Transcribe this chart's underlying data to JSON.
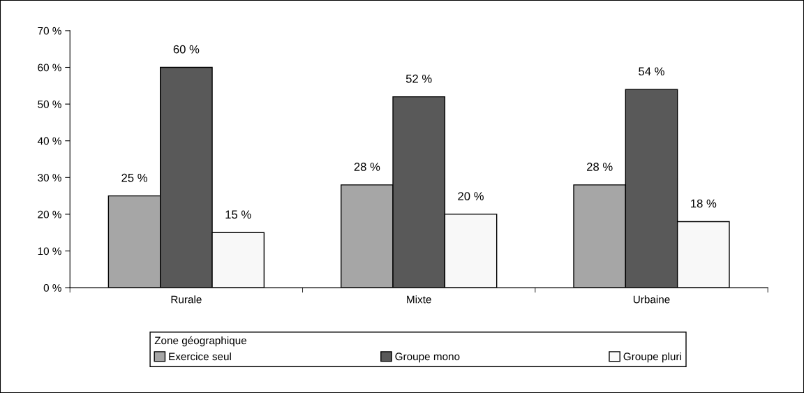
{
  "chart_data": {
    "type": "bar",
    "categories": [
      "Rurale",
      "Mixte",
      "Urbaine"
    ],
    "series": [
      {
        "name": "Exercice seul",
        "color": "#a6a6a6",
        "values": [
          25,
          28,
          28
        ],
        "value_labels": [
          "25 %",
          "28 %",
          "28 %"
        ]
      },
      {
        "name": "Groupe mono",
        "color": "#595959",
        "values": [
          60,
          52,
          54
        ],
        "value_labels": [
          "60 %",
          "52 %",
          "54 %"
        ]
      },
      {
        "name": "Groupe pluri",
        "color": "#f8f8f8",
        "values": [
          15,
          20,
          18
        ],
        "value_labels": [
          "15 %",
          "20 %",
          "18 %"
        ]
      }
    ],
    "legend_title": "Zone géographique",
    "legend": "bottom",
    "grid": false,
    "ylim": [
      0,
      70
    ],
    "yticks": [
      {
        "value": 0,
        "label": "0 %"
      },
      {
        "value": 10,
        "label": "10 %"
      },
      {
        "value": 20,
        "label": "20 %"
      },
      {
        "value": 30,
        "label": "30 %"
      },
      {
        "value": 40,
        "label": "40 %"
      },
      {
        "value": 50,
        "label": "50 %"
      },
      {
        "value": 60,
        "label": "60 %"
      },
      {
        "value": 70,
        "label": "70 %"
      }
    ]
  }
}
